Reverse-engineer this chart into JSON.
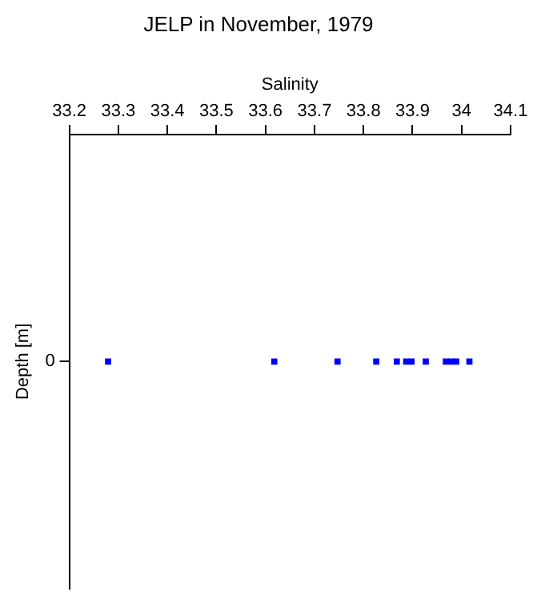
{
  "chart_data": {
    "type": "scatter",
    "orientation": "horizontal",
    "title": "JELP in November, 1979",
    "xlabel": "Salinity",
    "ylabel": "Depth [m]",
    "categories": [
      "0"
    ],
    "series": [
      {
        "color": "#0000ff",
        "x": [
          "0",
          "0",
          "0",
          "0",
          "0",
          "0",
          "0",
          "0",
          "0",
          "0",
          "0",
          "0"
        ],
        "values": [
          33.279,
          33.618,
          33.747,
          33.826,
          33.868,
          33.887,
          33.898,
          33.927,
          33.968,
          33.979,
          33.989,
          34.016
        ]
      }
    ],
    "xlim": [
      33.2,
      34.1
    ],
    "xticks": [
      33.2,
      33.3,
      33.4,
      33.5,
      33.6,
      33.7,
      33.8,
      33.9,
      34,
      34.1
    ],
    "grid": false,
    "legend": false,
    "marker": "square"
  }
}
